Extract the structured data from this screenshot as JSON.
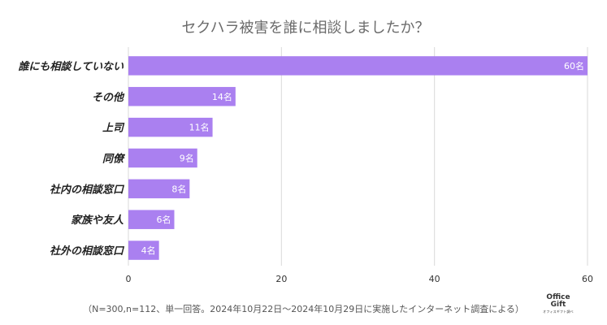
{
  "chart_data": {
    "type": "bar",
    "orientation": "horizontal",
    "title": "セクハラ被害を誰に相談しましたか？",
    "categories": [
      "誰にも相談していない",
      "その他",
      "上司",
      "同僚",
      "社内の相談窓口",
      "家族や友人",
      "社外の相談窓口"
    ],
    "values": [
      60,
      14,
      11,
      9,
      8,
      6,
      4
    ],
    "value_labels": [
      "60名",
      "14名",
      "11名",
      "9名",
      "8名",
      "6名",
      "4名"
    ],
    "xlim": [
      0,
      60
    ],
    "xticks": [
      0,
      20,
      40,
      60
    ],
    "xtick_labels": [
      "0",
      "20",
      "40",
      "60"
    ],
    "grid": true,
    "xlabel": "",
    "ylabel": "",
    "bar_color": "#aa80f0"
  },
  "footnote": "（N=300,n=112、単一回答。2024年10月22日〜2024年10月29日に実施したインターネット調査による）",
  "logo": {
    "line1": "Office",
    "line2": "Gift",
    "subtitle": "オフィスギフト調べ"
  }
}
